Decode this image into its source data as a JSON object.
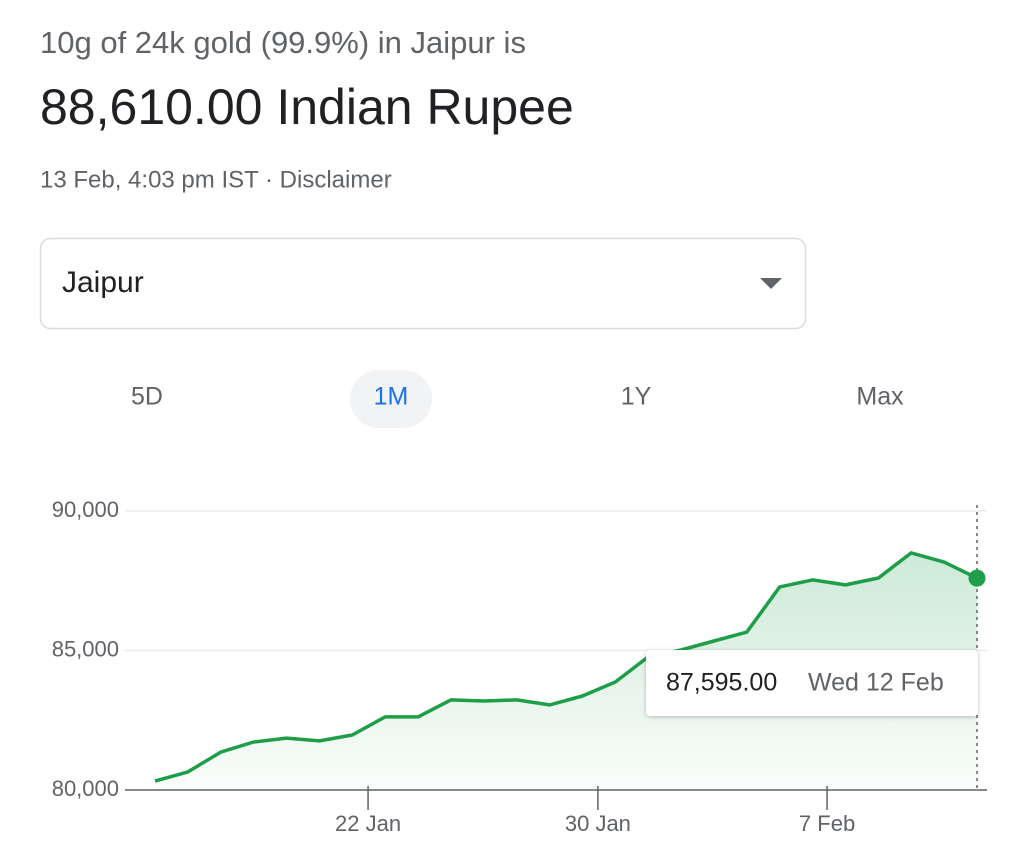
{
  "header": {
    "title": "10g of 24k gold (99.9%) in Jaipur is",
    "price": "88,610.00 Indian Rupee",
    "timestamp": "13 Feb, 4:03 pm IST · Disclaimer"
  },
  "dropdown": {
    "value": "Jaipur"
  },
  "tabs": [
    "5D",
    "1M",
    "1Y",
    "Max"
  ],
  "chart_data": {
    "type": "line",
    "color": "#1e9e48",
    "grid": true,
    "values": [
      80320,
      80650,
      81360,
      81720,
      81860,
      81760,
      81970,
      82620,
      82620,
      83230,
      83190,
      83230,
      83050,
      83370,
      83870,
      84770,
      85020,
      85340,
      85660,
      87280,
      87530,
      87350,
      87600,
      88500,
      88170,
      87595
    ],
    "xlim": [
      0,
      25
    ],
    "xticks": [
      {
        "value": 6.48,
        "label": "22 Jan"
      },
      {
        "value": 13.47,
        "label": "30 Jan"
      },
      {
        "value": 20.44,
        "label": "7 Feb"
      }
    ],
    "ylim": [
      80000,
      90000
    ],
    "yticks": [
      {
        "value": 80000,
        "label": "80,000"
      },
      {
        "value": 85000,
        "label": "85,000"
      },
      {
        "value": 90000,
        "label": "90,000"
      }
    ],
    "tooltip": {
      "label": "87,595.00",
      "date": "Wed 12 Feb"
    }
  }
}
